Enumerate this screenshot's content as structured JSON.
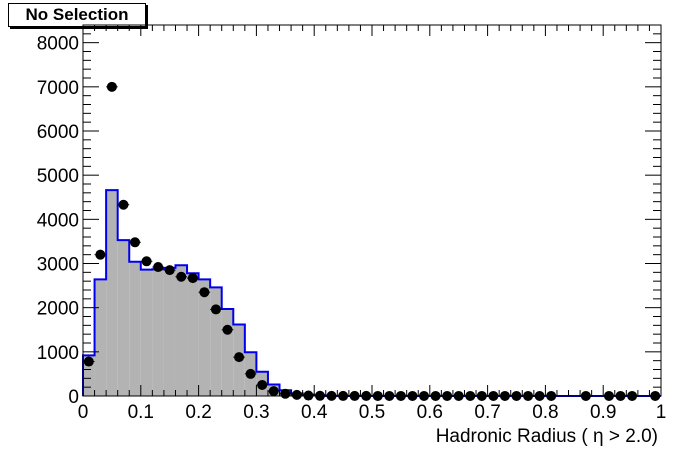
{
  "title_box": {
    "text": "No Selection"
  },
  "chart_data": {
    "type": "bar",
    "title": "No Selection",
    "xlabel": "Hadronic Radius ( η > 2.0)",
    "ylabel": "",
    "xlim": [
      0,
      1
    ],
    "ylim": [
      0,
      8400
    ],
    "grid": false,
    "x_ticks": [
      "0",
      "0.1",
      "0.2",
      "0.3",
      "0.4",
      "0.5",
      "0.6",
      "0.7",
      "0.8",
      "0.9",
      "1"
    ],
    "y_ticks": [
      "0",
      "1000",
      "2000",
      "3000",
      "4000",
      "5000",
      "6000",
      "7000",
      "8000"
    ],
    "bin_width": 0.02,
    "series": [
      {
        "style": "filled histogram, gray fill, blue outline",
        "color": "#0000ee",
        "fill": "#b3b3b3",
        "bin_low_edges": [
          0.0,
          0.02,
          0.04,
          0.06,
          0.08,
          0.1,
          0.12,
          0.14,
          0.16,
          0.18,
          0.2,
          0.22,
          0.24,
          0.26,
          0.28,
          0.3,
          0.32,
          0.34,
          0.36,
          0.38,
          0.4
        ],
        "values": [
          920,
          2640,
          4660,
          3530,
          3040,
          2860,
          2870,
          2900,
          2960,
          2780,
          2640,
          2460,
          1970,
          1620,
          990,
          550,
          260,
          130,
          60,
          30,
          15
        ]
      },
      {
        "style": "markers with error bars",
        "color": "#000000",
        "x": [
          0.01,
          0.03,
          0.05,
          0.07,
          0.09,
          0.11,
          0.13,
          0.15,
          0.17,
          0.19,
          0.21,
          0.23,
          0.25,
          0.27,
          0.29,
          0.31,
          0.33,
          0.35,
          0.37,
          0.39,
          0.41,
          0.43,
          0.45,
          0.47,
          0.49,
          0.51,
          0.53,
          0.55,
          0.57,
          0.59,
          0.61,
          0.63,
          0.65,
          0.67,
          0.69,
          0.71,
          0.73,
          0.75,
          0.77,
          0.79,
          0.81,
          0.87,
          0.91,
          0.93,
          0.95,
          0.99
        ],
        "y": [
          780,
          3200,
          7000,
          4330,
          3480,
          3050,
          2920,
          2850,
          2700,
          2670,
          2350,
          1960,
          1500,
          880,
          500,
          250,
          110,
          50,
          25,
          10,
          5,
          3,
          2,
          2,
          2,
          1,
          1,
          1,
          1,
          1,
          1,
          1,
          1,
          1,
          1,
          1,
          1,
          1,
          1,
          1,
          1,
          1,
          1,
          1,
          1,
          1
        ]
      }
    ]
  }
}
